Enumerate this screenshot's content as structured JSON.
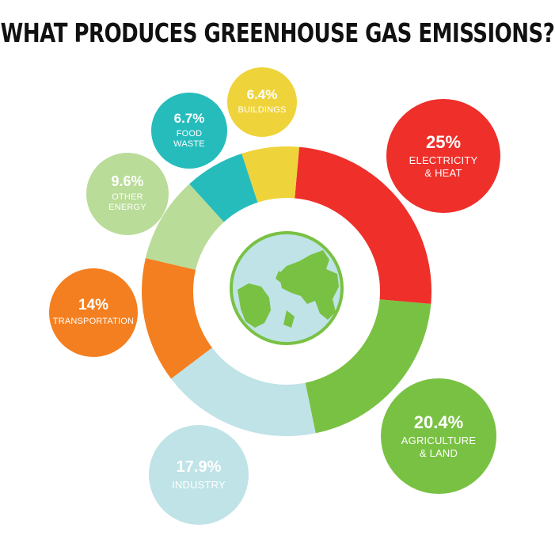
{
  "title": "WHAT PRODUCES GREENHOUSE GAS EMISSIONS?",
  "chart_data": {
    "type": "pie",
    "variant": "donut",
    "slices": [
      {
        "value": 25,
        "pct_label": "25%",
        "label_lines": [
          "ELECTRICITY",
          "& HEAT"
        ],
        "color": "#ee2f2a"
      },
      {
        "value": 20.4,
        "pct_label": "20.4%",
        "label_lines": [
          "AGRICULTURE",
          "& LAND"
        ],
        "color": "#79c143"
      },
      {
        "value": 17.9,
        "pct_label": "17.9%",
        "label_lines": [
          "INDUSTRY"
        ],
        "color": "#bfe3e6"
      },
      {
        "value": 14,
        "pct_label": "14%",
        "label_lines": [
          "TRANSPORTATION"
        ],
        "color": "#f47f20"
      },
      {
        "value": 9.6,
        "pct_label": "9.6%",
        "label_lines": [
          "OTHER",
          "ENERGY"
        ],
        "color": "#b9dc98"
      },
      {
        "value": 6.7,
        "pct_label": "6.7%",
        "label_lines": [
          "FOOD",
          "WASTE"
        ],
        "color": "#26bcbc"
      },
      {
        "value": 6.4,
        "pct_label": "6.4%",
        "label_lines": [
          "BUILDINGS"
        ],
        "color": "#efd33b"
      }
    ]
  },
  "icons": {
    "center": "globe-icon"
  },
  "colors": {
    "globe_ocean": "#bfe3e6",
    "globe_land": "#79c143",
    "globe_outline": "#79c143"
  }
}
